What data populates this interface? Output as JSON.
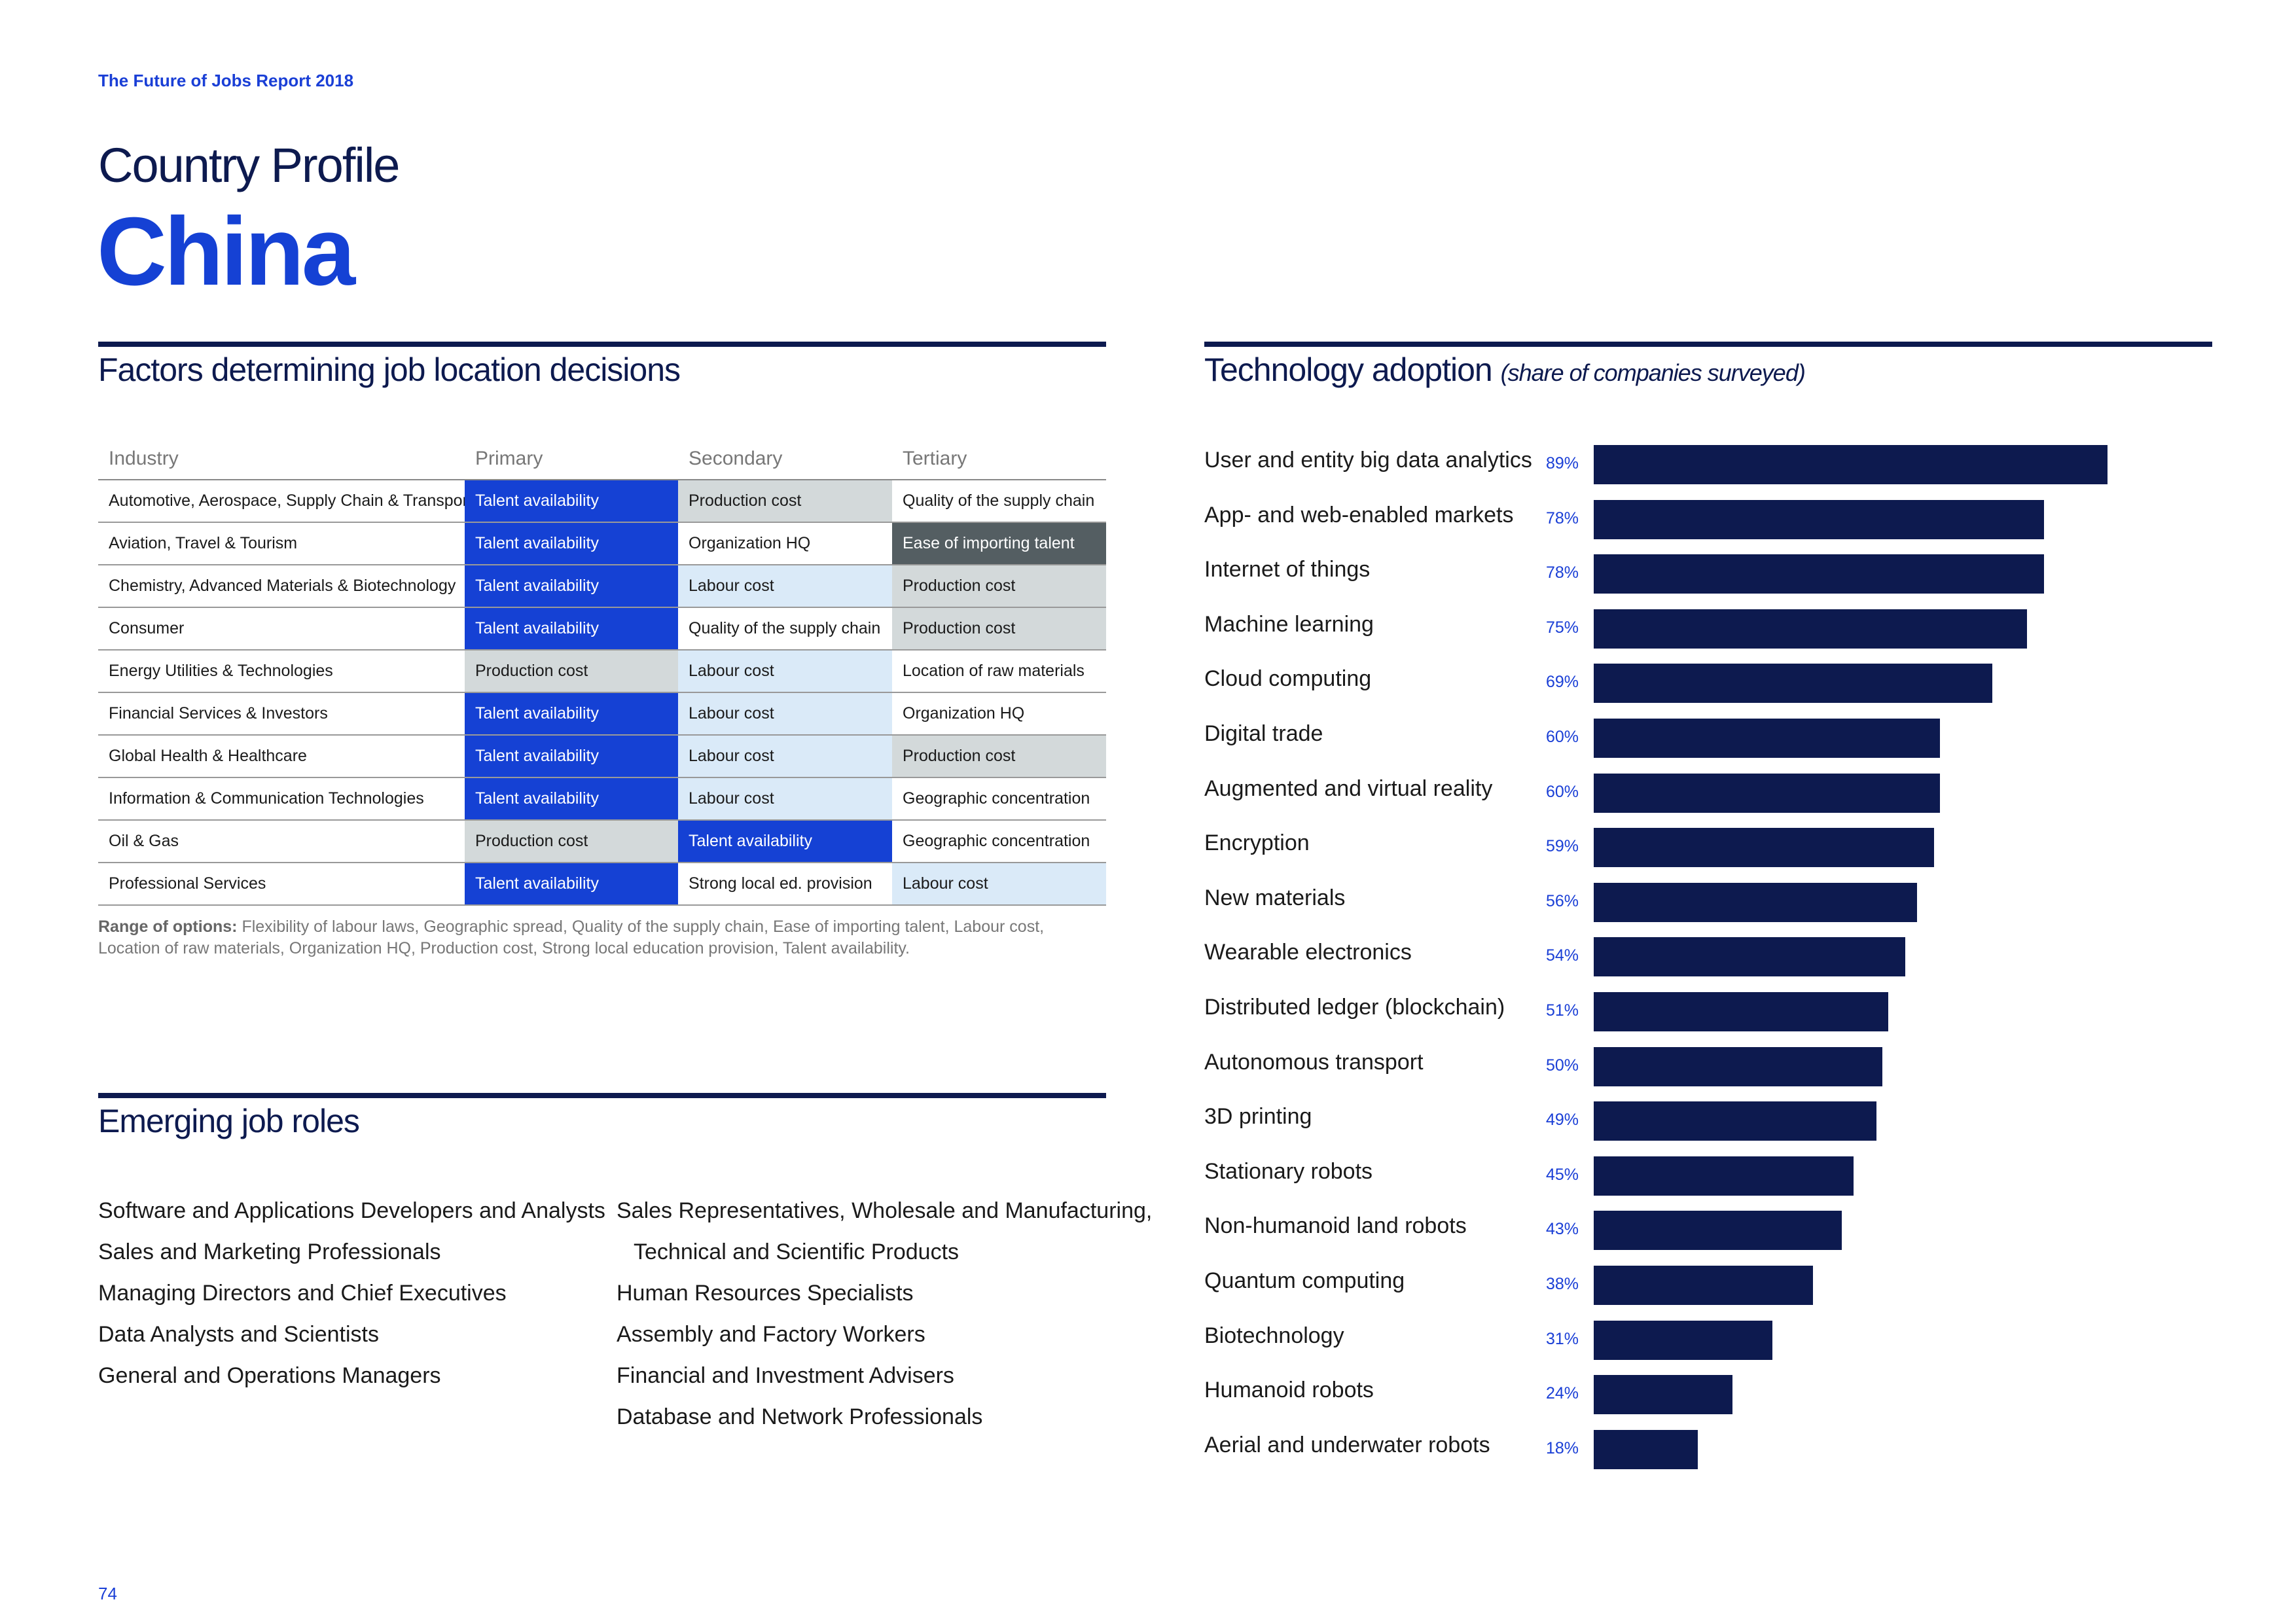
{
  "header": {
    "report_title": "The Future of Jobs Report 2018",
    "profile_label": "Country Profile",
    "country": "China"
  },
  "factors": {
    "title": "Factors determining job location decisions",
    "columns": [
      "Industry",
      "Primary",
      "Secondary",
      "Tertiary"
    ],
    "rows": [
      {
        "industry": "Automotive, Aerospace, Supply Chain & Transport",
        "primary": "Talent availability",
        "secondary": "Production cost",
        "tertiary": "Quality of the supply chain"
      },
      {
        "industry": "Aviation, Travel & Tourism",
        "primary": "Talent availability",
        "secondary": "Organization HQ",
        "tertiary": "Ease of importing talent"
      },
      {
        "industry": "Chemistry, Advanced Materials & Biotechnology",
        "primary": "Talent availability",
        "secondary": "Labour cost",
        "tertiary": "Production cost"
      },
      {
        "industry": "Consumer",
        "primary": "Talent availability",
        "secondary": "Quality of the supply chain",
        "tertiary": "Production cost"
      },
      {
        "industry": "Energy Utilities & Technologies",
        "primary": "Production cost",
        "secondary": "Labour cost",
        "tertiary": "Location of raw materials"
      },
      {
        "industry": "Financial Services & Investors",
        "primary": "Talent availability",
        "secondary": "Labour cost",
        "tertiary": "Organization HQ"
      },
      {
        "industry": "Global Health & Healthcare",
        "primary": "Talent availability",
        "secondary": "Labour cost",
        "tertiary": "Production cost"
      },
      {
        "industry": "Information & Communication Technologies",
        "primary": "Talent availability",
        "secondary": "Labour cost",
        "tertiary": "Geographic concentration"
      },
      {
        "industry": "Oil & Gas",
        "primary": "Production cost",
        "secondary": "Talent availability",
        "tertiary": "Geographic concentration"
      },
      {
        "industry": "Professional Services",
        "primary": "Talent availability",
        "secondary": "Strong local ed. provision",
        "tertiary": "Labour cost"
      }
    ],
    "range_label": "Range of options:",
    "range_text": "Flexibility of labour laws, Geographic spread, Quality of the supply chain, Ease of importing talent, Labour cost, Location of raw materials, Organization HQ, Production cost, Strong local education provision, Talent availability."
  },
  "colors": {
    "blue": "#1541d4",
    "navy": "#0d1a4f",
    "grey": "#d3d9da",
    "light_blue": "#daeaf8",
    "dark_grey": "#545e62"
  },
  "roles": {
    "title": "Emerging job roles",
    "left": [
      "Software and Applications Developers and Analysts",
      "Sales and Marketing Professionals",
      "Managing Directors and Chief Executives",
      "Data Analysts and Scientists",
      "General and Operations Managers"
    ],
    "right": [
      "Sales Representatives, Wholesale and Manufacturing,",
      "Technical and Scientific Products",
      "Human Resources Specialists",
      "Assembly and Factory Workers",
      "Financial and Investment Advisers",
      "Database and Network Professionals"
    ]
  },
  "tech": {
    "title": "Technology adoption",
    "subtitle": "(share of companies surveyed)"
  },
  "chart_data": {
    "type": "bar",
    "orientation": "horizontal",
    "title": "Technology adoption (share of companies surveyed)",
    "categories": [
      "User and entity big data analytics",
      "App- and web-enabled markets",
      "Internet of things",
      "Machine learning",
      "Cloud computing",
      "Digital trade",
      "Augmented and virtual reality",
      "Encryption",
      "New materials",
      "Wearable electronics",
      "Distributed ledger (blockchain)",
      "Autonomous transport",
      "3D printing",
      "Stationary robots",
      "Non-humanoid land robots",
      "Quantum computing",
      "Biotechnology",
      "Humanoid robots",
      "Aerial and underwater robots"
    ],
    "values": [
      89,
      78,
      78,
      75,
      69,
      60,
      60,
      59,
      56,
      54,
      51,
      50,
      49,
      45,
      43,
      38,
      31,
      24,
      18
    ],
    "labels": [
      "89%",
      "78%",
      "78%",
      "75%",
      "69%",
      "60%",
      "60%",
      "59%",
      "56%",
      "54%",
      "51%",
      "50%",
      "49%",
      "45%",
      "43%",
      "38%",
      "31%",
      "24%",
      "18%"
    ],
    "unit": "%",
    "xlim": [
      0,
      100
    ]
  },
  "page": {
    "number": "74"
  }
}
